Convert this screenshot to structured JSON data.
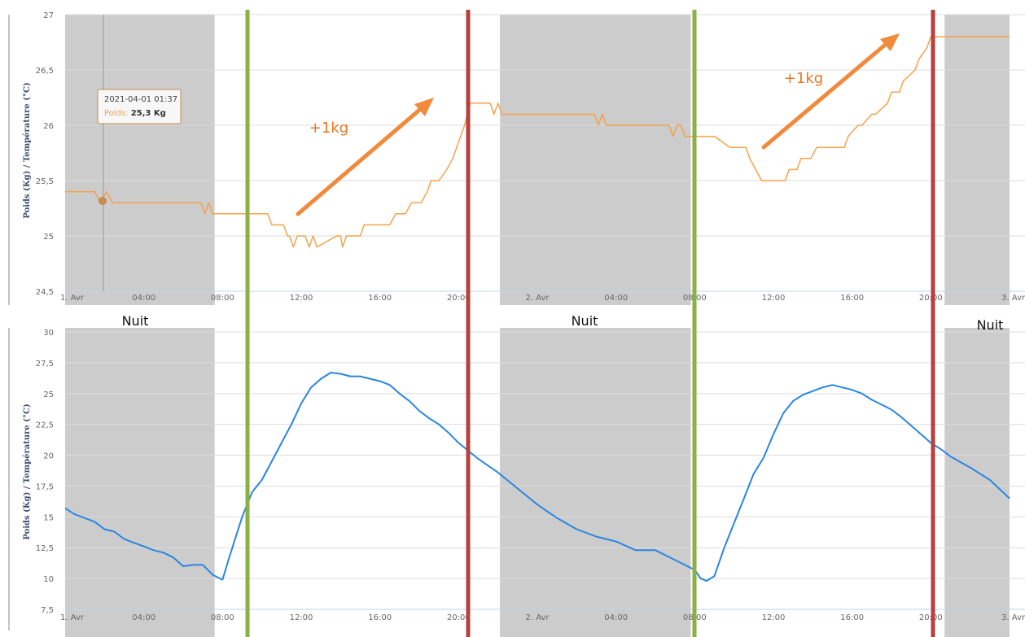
{
  "colors": {
    "night_band": "#cccccc",
    "grid": "#dddddd",
    "weight_series": "#f5a24a",
    "temperature_series": "#2a86e0",
    "morning_marker": "#8bb045",
    "evening_marker": "#b5403d",
    "annotation": "#e87722",
    "axis_label": "#3b4d74"
  },
  "night_label": "Nuit",
  "tooltip": {
    "date": "2021-04-01 01:37",
    "series": "Poids",
    "value": "25,3 Kg"
  },
  "chart_data": [
    {
      "type": "line",
      "ylabel": "Poids (Kg) / Température (°C)",
      "ylim": [
        24.5,
        27
      ],
      "yticks": [
        "24,5",
        "25",
        "25,5",
        "26",
        "26,5",
        "27"
      ],
      "yticks_values": [
        24.5,
        25,
        25.5,
        26,
        26.5,
        27
      ],
      "xlim_hours": [
        0,
        48
      ],
      "xticks": [
        "1. Avr",
        "04:00",
        "08:00",
        "12:00",
        "16:00",
        "20:00",
        "2. Avr",
        "04:00",
        "08:00",
        "12:00",
        "16:00",
        "20:00",
        "3. Avr"
      ],
      "xticks_hours": [
        0,
        4,
        8,
        12,
        16,
        20,
        24,
        28,
        32,
        36,
        40,
        44,
        48
      ],
      "grid": true,
      "series": [
        {
          "name": "Poids",
          "x_hours": [
            0,
            1.5,
            1.8,
            2.1,
            2.4,
            4,
            6.9,
            7.1,
            7.3,
            7.5,
            10.3,
            10.5,
            11.1,
            11.3,
            11.4,
            11.6,
            11.8,
            12.2,
            12.4,
            12.6,
            12.8,
            13.8,
            14,
            14.1,
            14.3,
            15,
            15.2,
            16.5,
            16.8,
            17.3,
            17.6,
            18.1,
            18.4,
            18.6,
            19,
            19.4,
            19.7,
            19.9,
            20.3,
            20.6,
            21.6,
            21.8,
            22,
            22.2,
            22.4,
            26.9,
            27.1,
            27.3,
            27.5,
            29.5,
            30.7,
            30.9,
            31.1,
            31.3,
            31.5,
            32,
            32.5,
            33,
            33.8,
            33.9,
            34.6,
            34.8,
            35.4,
            35.6,
            36.6,
            36.8,
            37.2,
            37.4,
            37.9,
            38.2,
            39.6,
            39.8,
            40.3,
            40.5,
            41,
            41.2,
            41.8,
            42,
            42.4,
            42.6,
            43.2,
            43.4,
            43.8,
            44,
            44.3,
            48
          ],
          "values": [
            25.4,
            25.4,
            25.3,
            25.4,
            25.3,
            25.3,
            25.3,
            25.2,
            25.3,
            25.2,
            25.2,
            25.1,
            25.1,
            25.0,
            25.0,
            24.9,
            25.0,
            25.0,
            24.9,
            25.0,
            24.9,
            25.0,
            25.0,
            24.9,
            25.0,
            25.0,
            25.1,
            25.1,
            25.2,
            25.2,
            25.3,
            25.3,
            25.4,
            25.5,
            25.5,
            25.6,
            25.7,
            25.8,
            26.0,
            26.2,
            26.2,
            26.1,
            26.2,
            26.1,
            26.1,
            26.1,
            26.0,
            26.1,
            26.0,
            26.0,
            26.0,
            25.9,
            26.0,
            26.0,
            25.9,
            25.9,
            25.9,
            25.9,
            25.8,
            25.8,
            25.8,
            25.7,
            25.5,
            25.5,
            25.5,
            25.6,
            25.6,
            25.7,
            25.7,
            25.8,
            25.8,
            25.9,
            26.0,
            26.0,
            26.1,
            26.1,
            26.2,
            26.3,
            26.3,
            26.4,
            26.5,
            26.6,
            26.7,
            26.8,
            26.8,
            26.8
          ]
        }
      ],
      "annotations": [
        "+1kg",
        "+1kg"
      ]
    },
    {
      "type": "line",
      "ylabel": "Poids (Kg) / Température (°C)",
      "ylim": [
        7.5,
        30
      ],
      "yticks": [
        "7,5",
        "10",
        "12,5",
        "15",
        "17,5",
        "20",
        "22,5",
        "25",
        "27,5",
        "30"
      ],
      "yticks_values": [
        7.5,
        10,
        12.5,
        15,
        17.5,
        20,
        22.5,
        25,
        27.5,
        30
      ],
      "xlim_hours": [
        0,
        48
      ],
      "xticks": [
        "1. Avr",
        "04:00",
        "08:00",
        "12:00",
        "16:00",
        "20:00",
        "2. Avr",
        "04:00",
        "08:00",
        "12:00",
        "16:00",
        "20:00",
        "3. Avr"
      ],
      "xticks_hours": [
        0,
        4,
        8,
        12,
        16,
        20,
        24,
        28,
        32,
        36,
        40,
        44,
        48
      ],
      "grid": true,
      "series": [
        {
          "name": "Température",
          "x_hours": [
            0,
            0.5,
            1,
            1.5,
            2,
            2.5,
            3,
            3.5,
            4,
            4.5,
            5,
            5.5,
            6,
            6.5,
            7,
            7.5,
            8,
            8.3,
            8.6,
            9,
            9.5,
            10,
            10.5,
            11,
            11.5,
            12,
            12.5,
            13,
            13.5,
            14,
            14.5,
            15,
            15.5,
            16,
            16.5,
            17,
            17.5,
            18,
            18.5,
            19,
            19.5,
            20,
            21,
            22,
            23,
            24,
            25,
            26,
            27,
            28,
            29,
            30,
            31,
            32,
            32.3,
            32.6,
            33,
            33.5,
            34,
            34.5,
            35,
            35.5,
            36,
            36.5,
            37,
            37.5,
            38,
            38.5,
            39,
            39.5,
            40,
            40.5,
            41,
            41.5,
            42,
            42.5,
            43,
            43.5,
            44,
            44.5,
            45,
            46,
            47,
            48
          ],
          "values": [
            15.7,
            15.2,
            14.9,
            14.6,
            14.0,
            13.8,
            13.2,
            12.9,
            12.6,
            12.3,
            12.1,
            11.7,
            11.0,
            11.1,
            11.1,
            10.3,
            9.9,
            11.5,
            13.0,
            15.0,
            17.0,
            18.0,
            19.5,
            21.0,
            22.5,
            24.2,
            25.5,
            26.2,
            26.7,
            26.6,
            26.4,
            26.4,
            26.2,
            26.0,
            25.7,
            25.0,
            24.4,
            23.6,
            23.0,
            22.5,
            21.8,
            21.0,
            19.7,
            18.6,
            17.3,
            16.0,
            14.9,
            14.0,
            13.4,
            13.0,
            12.3,
            12.3,
            11.5,
            10.7,
            10.0,
            9.8,
            10.2,
            12.5,
            14.5,
            16.5,
            18.5,
            19.8,
            21.7,
            23.4,
            24.4,
            24.9,
            25.2,
            25.5,
            25.7,
            25.5,
            25.3,
            25.0,
            24.5,
            24.1,
            23.7,
            23.1,
            22.4,
            21.7,
            21.0,
            20.5,
            19.9,
            19.0,
            18.0,
            16.5
          ]
        }
      ]
    }
  ]
}
